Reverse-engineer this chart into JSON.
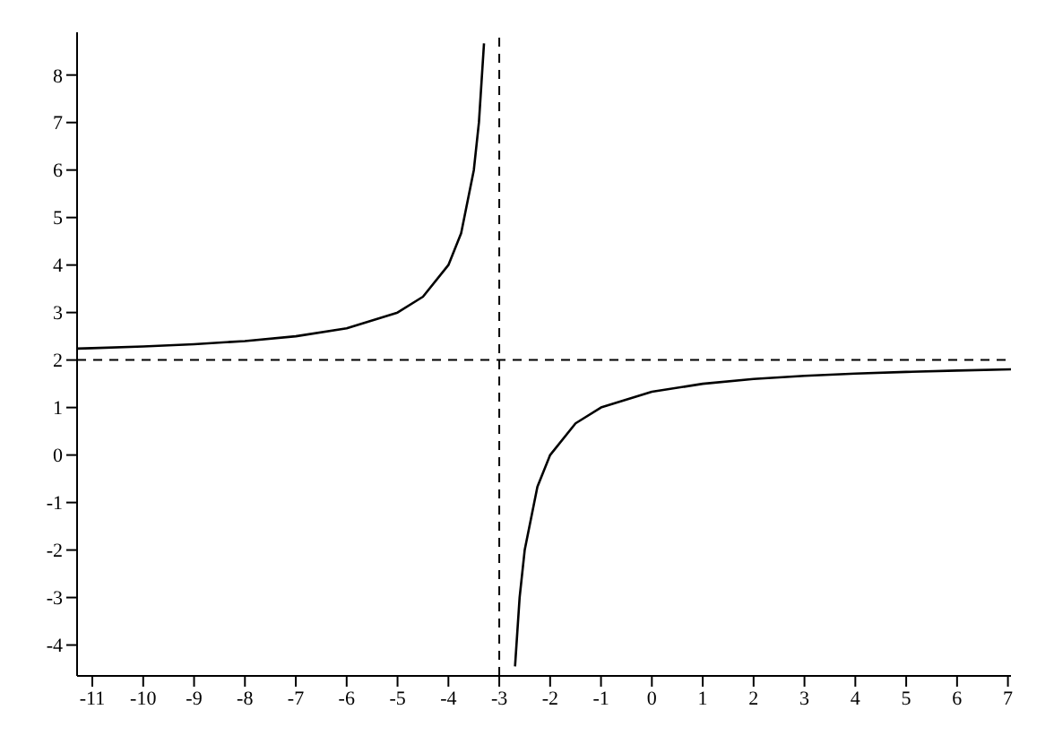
{
  "chart_data": {
    "type": "line",
    "x": [
      -11.3,
      -11,
      -10,
      -9,
      -8,
      -7,
      -6,
      -5,
      -4.5,
      -4,
      -3.75,
      -3.5,
      -3.4,
      -3.3,
      null,
      -2.69,
      -2.6,
      -2.5,
      -2.25,
      -2,
      -1.5,
      -1,
      0,
      1,
      2,
      3,
      4,
      5,
      6,
      7.06
    ],
    "series": [
      {
        "color": "#000000",
        "values": [
          2.24,
          2.25,
          2.286,
          2.333,
          2.4,
          2.5,
          2.667,
          3,
          3.333,
          4,
          4.667,
          6,
          7,
          8.667,
          null,
          -4.45,
          -3,
          -2,
          -0.667,
          0,
          0.667,
          1,
          1.333,
          1.5,
          1.6,
          1.667,
          1.714,
          1.75,
          1.778,
          1.803
        ]
      }
    ],
    "xlim": [
      -11.3,
      7.06
    ],
    "ylim": [
      -4.65,
      8.9
    ],
    "xticks": [
      -11,
      -10,
      -9,
      -8,
      -7,
      -6,
      -5,
      -4,
      -3,
      -2,
      -1,
      0,
      1,
      2,
      3,
      4,
      5,
      6,
      7
    ],
    "yticks": [
      -4,
      -3,
      -2,
      -1,
      0,
      1,
      2,
      3,
      4,
      5,
      6,
      7,
      8
    ],
    "ref_lines": [
      {
        "axis": "x",
        "value": -3,
        "color": "#000000",
        "line_style": "dashed"
      },
      {
        "axis": "y",
        "value": 2,
        "color": "#000000",
        "line_style": "dashed"
      }
    ],
    "marker": "none",
    "line_style": "solid",
    "grid": false,
    "legend": false
  }
}
